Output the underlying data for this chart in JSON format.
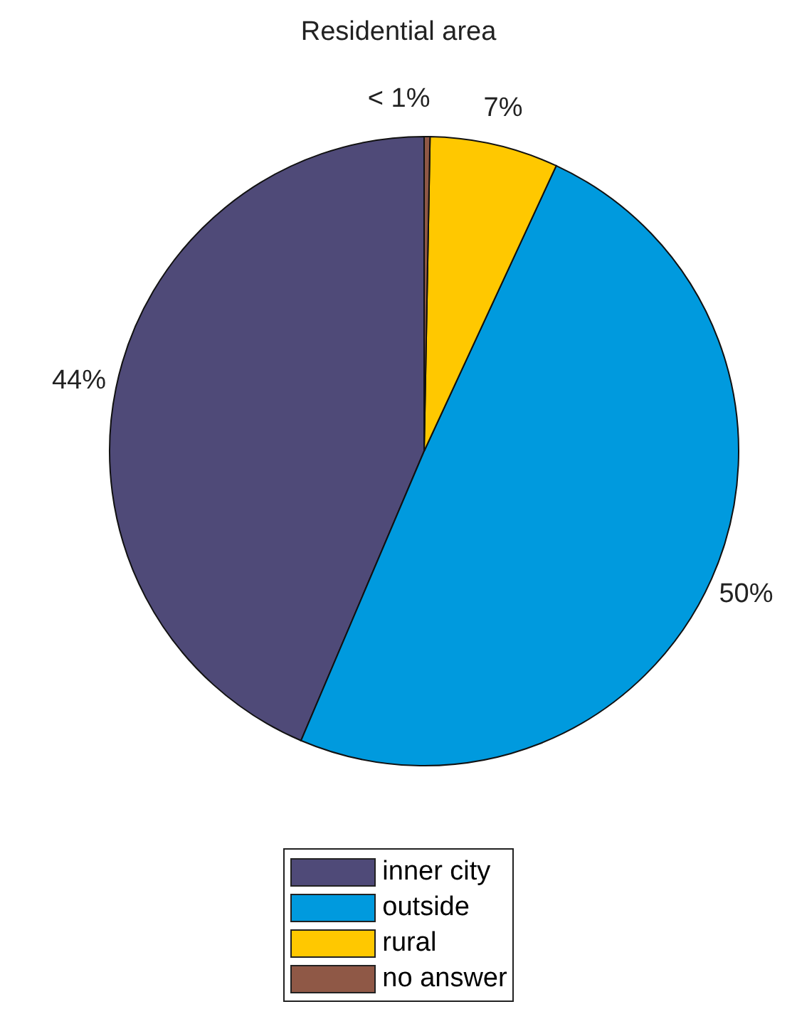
{
  "chart_data": {
    "type": "pie",
    "title": "Residential area",
    "categories": [
      "inner city",
      "outside",
      "rural",
      "no answer"
    ],
    "values": [
      43.6,
      49.5,
      6.6,
      0.3
    ],
    "colors": [
      "#4f4a78",
      "#009ade",
      "#ffc800",
      "#8f5846"
    ],
    "value_labels": [
      "44%",
      "50%",
      "7%",
      "< 1%"
    ],
    "legend": "bottom"
  }
}
